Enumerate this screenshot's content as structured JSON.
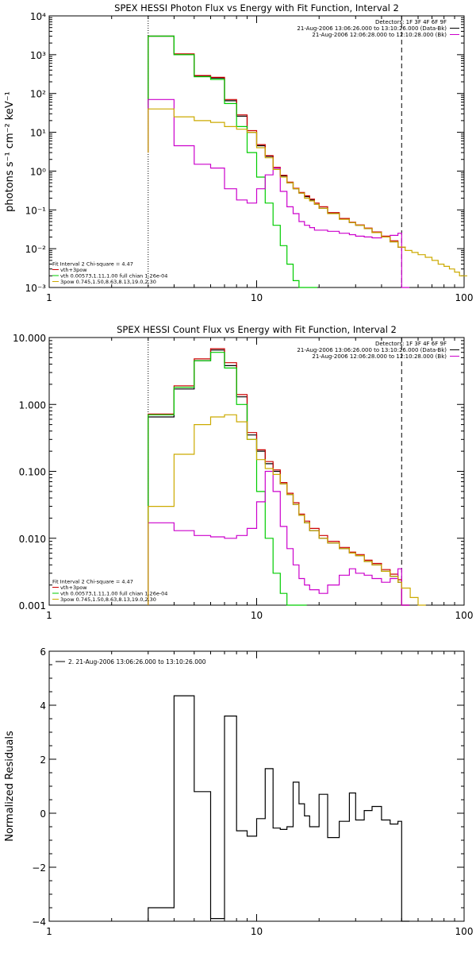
{
  "chart_data": [
    {
      "type": "line",
      "title": "SPEX HESSI Photon Flux vs Energy with Fit Function, Interval 2",
      "ylabel": "photons s⁻¹ cm⁻² keV⁻¹",
      "xlabel": "",
      "xscale": "log",
      "yscale": "log",
      "xlim": [
        1,
        100
      ],
      "ylim": [
        0.001,
        10000
      ],
      "xticks": [
        {
          "v": 1,
          "t": "1"
        },
        {
          "v": 10,
          "t": "10"
        },
        {
          "v": 100,
          "t": "100"
        }
      ],
      "yticks": [
        {
          "v": 0.001,
          "t": "10⁻³"
        },
        {
          "v": 0.01,
          "t": "10⁻²"
        },
        {
          "v": 0.1,
          "t": "10⁻¹"
        },
        {
          "v": 1,
          "t": "10⁰"
        },
        {
          "v": 10,
          "t": "10¹"
        },
        {
          "v": 100,
          "t": "10²"
        },
        {
          "v": 1000,
          "t": "10³"
        },
        {
          "v": 10000,
          "t": "10⁴"
        }
      ],
      "vlines": [
        {
          "x": 3,
          "style": "dotted",
          "color": "#000000"
        },
        {
          "x": 50,
          "style": "dashed",
          "color": "#000000"
        }
      ],
      "legend_top": [
        {
          "text": "Detectors: 1F 3F 4F 6F 9F",
          "color": ""
        },
        {
          "text": "21-Aug-2006 13:06:26.000 to 13:10:26.000 (Data-Bk)",
          "color": "#000000"
        },
        {
          "text": "21-Aug-2006 12:06:28.000 to 12:10:28.000 (Bk)",
          "color": "#cc00cc"
        }
      ],
      "legend_bottom": [
        {
          "text": "Fit Interval 2   Chi-square = 4.47",
          "color": ""
        },
        {
          "text": "vth+3pow",
          "color": "#cc0000"
        },
        {
          "text": "vth 0.00573,1.11,1.00  full chian 1.26e-04",
          "color": "#00cc00"
        },
        {
          "text": "3pow 0.745,1.50,8.63,8.13,19.0,2.30",
          "color": "#ccaa00"
        }
      ],
      "series": [
        {
          "color": "#000000",
          "start": 50,
          "x": [
            3,
            4,
            5,
            6,
            7,
            8,
            9,
            10,
            11,
            12,
            13,
            14,
            15,
            16,
            17,
            18,
            19,
            20,
            22,
            25,
            28,
            30,
            33,
            36,
            40,
            44,
            48
          ],
          "y": [
            3000,
            1000,
            280,
            250,
            65,
            26,
            10,
            4.5,
            2.4,
            1.2,
            0.75,
            0.5,
            0.35,
            0.27,
            0.22,
            0.18,
            0.14,
            0.11,
            0.082,
            0.058,
            0.047,
            0.04,
            0.033,
            0.026,
            0.02,
            0.015,
            0.011
          ]
        },
        {
          "color": "#cc0000",
          "start": 3,
          "x": [
            3,
            4,
            5,
            6,
            7,
            8,
            9,
            10,
            11,
            12,
            13,
            14,
            15,
            16,
            17,
            18,
            19,
            20,
            22,
            25,
            28,
            30,
            33,
            36,
            40,
            44,
            48
          ],
          "y": [
            3000,
            1050,
            290,
            260,
            70,
            28,
            11,
            4.8,
            2.5,
            1.25,
            0.78,
            0.52,
            0.36,
            0.28,
            0.23,
            0.19,
            0.15,
            0.12,
            0.085,
            0.06,
            0.048,
            0.041,
            0.034,
            0.027,
            0.021,
            0.016,
            0.011
          ]
        },
        {
          "color": "#00cc00",
          "start": 3,
          "x": [
            3,
            4,
            5,
            6,
            7,
            8,
            9,
            10,
            11,
            12,
            13,
            14,
            15,
            16,
            17,
            18
          ],
          "y": [
            3000,
            1000,
            270,
            230,
            55,
            14,
            3,
            0.7,
            0.15,
            0.04,
            0.012,
            0.004,
            0.0015,
            0.001,
            0.001,
            0.001
          ]
        },
        {
          "color": "#cc00cc",
          "start": 3,
          "x": [
            3,
            4,
            5,
            6,
            7,
            8,
            9,
            10,
            11,
            12,
            13,
            14,
            15,
            16,
            17,
            18,
            19,
            20,
            22,
            25,
            28,
            30,
            33,
            36,
            40,
            44,
            48,
            50
          ],
          "y": [
            70,
            4.5,
            1.5,
            1.2,
            0.35,
            0.18,
            0.15,
            0.35,
            0.8,
            1.2,
            0.3,
            0.12,
            0.08,
            0.05,
            0.04,
            0.035,
            0.03,
            0.03,
            0.028,
            0.025,
            0.023,
            0.021,
            0.02,
            0.019,
            0.02,
            0.022,
            0.025,
            0.001
          ]
        },
        {
          "color": "#ccaa00",
          "start": 3,
          "x": [
            3,
            4,
            5,
            6,
            7,
            8,
            9,
            10,
            11,
            12,
            13,
            14,
            15,
            16,
            17,
            18,
            19,
            20,
            22,
            25,
            28,
            30,
            33,
            36,
            40,
            44,
            48,
            52,
            56,
            60,
            65,
            70,
            75,
            80,
            85,
            90,
            95
          ],
          "y": [
            40,
            25,
            20,
            18,
            14,
            12,
            10,
            4,
            2.2,
            1.1,
            0.7,
            0.5,
            0.35,
            0.27,
            0.2,
            0.17,
            0.14,
            0.11,
            0.08,
            0.057,
            0.047,
            0.04,
            0.033,
            0.026,
            0.02,
            0.015,
            0.011,
            0.009,
            0.008,
            0.007,
            0.006,
            0.005,
            0.004,
            0.0035,
            0.003,
            0.0025,
            0.002
          ]
        }
      ]
    },
    {
      "type": "line",
      "title": "SPEX HESSI Count Flux vs Energy with Fit Function, Interval 2",
      "ylabel": "",
      "xlabel": "",
      "xscale": "log",
      "yscale": "log",
      "xlim": [
        1,
        100
      ],
      "ylim": [
        0.001,
        10
      ],
      "xticks": [
        {
          "v": 1,
          "t": "1"
        },
        {
          "v": 10,
          "t": "10"
        },
        {
          "v": 100,
          "t": "100"
        }
      ],
      "yticks": [
        {
          "v": 0.001,
          "t": "0.001"
        },
        {
          "v": 0.01,
          "t": "0.010"
        },
        {
          "v": 0.1,
          "t": "0.100"
        },
        {
          "v": 1,
          "t": "1.000"
        },
        {
          "v": 10,
          "t": "10.000"
        }
      ],
      "vlines": [
        {
          "x": 3,
          "style": "dotted",
          "color": "#000000"
        },
        {
          "x": 50,
          "style": "dashed",
          "color": "#000000"
        }
      ],
      "legend_top": [
        {
          "text": "Detectors: 1F 3F 4F 6F 9F",
          "color": ""
        },
        {
          "text": "21-Aug-2006 13:06:26.000 to 13:10:26.000 (Data-Bk)",
          "color": "#000000"
        },
        {
          "text": "21-Aug-2006 12:06:28.000 to 12:10:28.000 (Bk)",
          "color": "#cc00cc"
        }
      ],
      "legend_bottom": [
        {
          "text": "Fit Interval 2   Chi-square = 4.47",
          "color": ""
        },
        {
          "text": "vth+3pow",
          "color": "#cc0000"
        },
        {
          "text": "vth 0.00573,1.11,1.00  full chian 1.26e-04",
          "color": "#00cc00"
        },
        {
          "text": "3pow 0.745,1.50,8.63,8.13,19.0,2.30",
          "color": "#ccaa00"
        }
      ],
      "series": [
        {
          "color": "#000000",
          "start": 0.001,
          "x": [
            3,
            4,
            5,
            6,
            7,
            8,
            9,
            10,
            11,
            12,
            13,
            14,
            15,
            16,
            17,
            18,
            20,
            22,
            25,
            28,
            30,
            33,
            36,
            40,
            44,
            48,
            50
          ],
          "y": [
            0.65,
            1.7,
            4.5,
            6.5,
            3.8,
            1.3,
            0.35,
            0.2,
            0.13,
            0.1,
            0.065,
            0.045,
            0.032,
            0.022,
            0.017,
            0.013,
            0.01,
            0.0085,
            0.007,
            0.006,
            0.0055,
            0.0045,
            0.004,
            0.0032,
            0.0027,
            0.0022,
            0.001
          ]
        },
        {
          "color": "#cc0000",
          "start": 0.001,
          "x": [
            3,
            4,
            5,
            6,
            7,
            8,
            9,
            10,
            11,
            12,
            13,
            14,
            15,
            16,
            17,
            18,
            20,
            22,
            25,
            28,
            30,
            33,
            36,
            40,
            44,
            48,
            50
          ],
          "y": [
            0.72,
            1.9,
            4.8,
            6.8,
            4.2,
            1.4,
            0.38,
            0.21,
            0.14,
            0.105,
            0.068,
            0.047,
            0.034,
            0.023,
            0.018,
            0.014,
            0.011,
            0.009,
            0.0073,
            0.0062,
            0.0057,
            0.0047,
            0.0042,
            0.0034,
            0.0029,
            0.0024,
            0.001
          ]
        },
        {
          "color": "#00cc00",
          "start": 0.001,
          "x": [
            3,
            4,
            5,
            6,
            7,
            8,
            9,
            10,
            11,
            12,
            13,
            14,
            15,
            16
          ],
          "y": [
            0.7,
            1.8,
            4.5,
            6,
            3.5,
            1,
            0.3,
            0.05,
            0.01,
            0.003,
            0.0015,
            0.001,
            0.001,
            0.001
          ]
        },
        {
          "color": "#cc00cc",
          "start": 0.001,
          "x": [
            3,
            4,
            5,
            6,
            7,
            8,
            9,
            10,
            11,
            12,
            13,
            14,
            15,
            16,
            17,
            18,
            20,
            22,
            25,
            28,
            30,
            33,
            36,
            40,
            44,
            48,
            50
          ],
          "y": [
            0.017,
            0.013,
            0.011,
            0.0105,
            0.01,
            0.011,
            0.014,
            0.035,
            0.1,
            0.05,
            0.015,
            0.007,
            0.004,
            0.0025,
            0.002,
            0.0017,
            0.0015,
            0.002,
            0.0028,
            0.0035,
            0.003,
            0.0028,
            0.0025,
            0.0022,
            0.0025,
            0.0035,
            0.001
          ]
        },
        {
          "color": "#ccaa00",
          "start": 0.001,
          "x": [
            3,
            4,
            5,
            6,
            7,
            8,
            9,
            10,
            11,
            12,
            13,
            14,
            15,
            16,
            17,
            18,
            20,
            22,
            25,
            28,
            30,
            33,
            36,
            40,
            44,
            48,
            50,
            55,
            60
          ],
          "y": [
            0.03,
            0.18,
            0.5,
            0.65,
            0.7,
            0.55,
            0.3,
            0.15,
            0.11,
            0.09,
            0.065,
            0.045,
            0.032,
            0.022,
            0.017,
            0.013,
            0.01,
            0.0085,
            0.007,
            0.006,
            0.0055,
            0.0045,
            0.004,
            0.0032,
            0.0027,
            0.0022,
            0.0018,
            0.0013,
            0.001
          ]
        }
      ]
    },
    {
      "type": "line",
      "title": "",
      "ylabel": "Normalized Residuals",
      "xlabel": "",
      "xscale": "log",
      "yscale": "linear",
      "xlim": [
        1,
        100
      ],
      "ylim": [
        -4,
        6
      ],
      "xticks": [
        {
          "v": 1,
          "t": "1"
        },
        {
          "v": 10,
          "t": "10"
        },
        {
          "v": 100,
          "t": "100"
        }
      ],
      "yticks": [
        {
          "v": -4,
          "t": "−4"
        },
        {
          "v": -2,
          "t": "−2"
        },
        {
          "v": 0,
          "t": "0"
        },
        {
          "v": 2,
          "t": "2"
        },
        {
          "v": 4,
          "t": "4"
        },
        {
          "v": 6,
          "t": "6"
        }
      ],
      "vlines": [],
      "legend_top": [
        {
          "text": "2. 21-Aug-2006 13:06:26.000 to 13:10:26.000",
          "color": "#000000"
        }
      ],
      "legend_bottom": [],
      "series": [
        {
          "color": "#000000",
          "start": -4,
          "x": [
            3,
            4,
            5,
            6,
            7,
            8,
            9,
            10,
            11,
            12,
            13,
            14,
            15,
            16,
            17,
            18,
            20,
            22,
            25,
            28,
            30,
            33,
            36,
            40,
            44,
            48,
            50
          ],
          "y": [
            -3.5,
            4.35,
            0.8,
            -3.9,
            3.6,
            -0.65,
            -0.85,
            -0.2,
            1.65,
            -0.55,
            -0.6,
            -0.5,
            1.15,
            0.35,
            -0.1,
            -0.5,
            0.7,
            -0.9,
            -0.3,
            0.75,
            -0.25,
            0.1,
            0.25,
            -0.25,
            -0.4,
            -0.3,
            -4
          ]
        }
      ]
    }
  ]
}
